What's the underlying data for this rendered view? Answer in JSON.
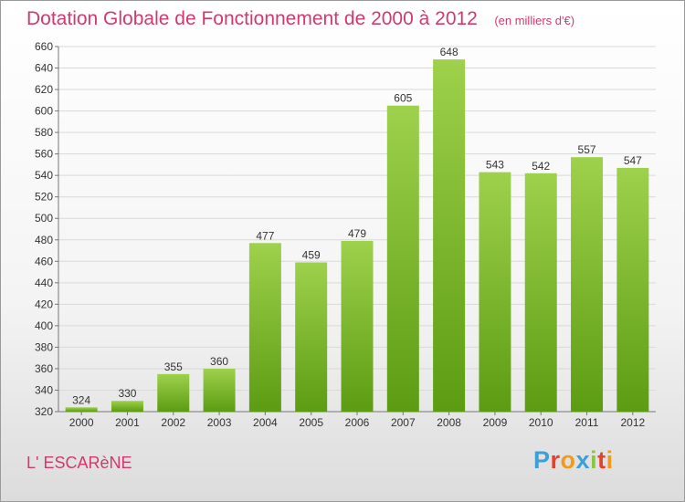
{
  "header": {
    "title": "Dotation Globale de Fonctionnement de 2000 à 2012",
    "unit": "(en milliers d'€)"
  },
  "footer": {
    "commune": "L' ESCARèNE",
    "logo": "Proxiti",
    "logo_colors": [
      "#3aa0d8",
      "#e8402a",
      "#f29a1c",
      "#3aa0d8",
      "#8cc63f",
      "#e8402a",
      "#f29a1c"
    ]
  },
  "colors": {
    "bar_top": "#9ed14c",
    "bar_bottom": "#5c9c12",
    "title": "#d23a6e",
    "grid": "#d9d9d9"
  },
  "chart_data": {
    "type": "bar",
    "title": "Dotation Globale de Fonctionnement de 2000 à 2012",
    "subtitle": "(en milliers d'€)",
    "xlabel": "",
    "ylabel": "",
    "ylim": [
      320,
      660
    ],
    "yticks": [
      320,
      340,
      360,
      380,
      400,
      420,
      440,
      460,
      480,
      500,
      520,
      540,
      560,
      580,
      600,
      620,
      640,
      660
    ],
    "grid": true,
    "categories": [
      "2000",
      "2001",
      "2002",
      "2003",
      "2004",
      "2005",
      "2006",
      "2007",
      "2008",
      "2009",
      "2010",
      "2011",
      "2012"
    ],
    "values": [
      324,
      330,
      355,
      360,
      477,
      459,
      479,
      605,
      648,
      543,
      542,
      557,
      547
    ]
  }
}
